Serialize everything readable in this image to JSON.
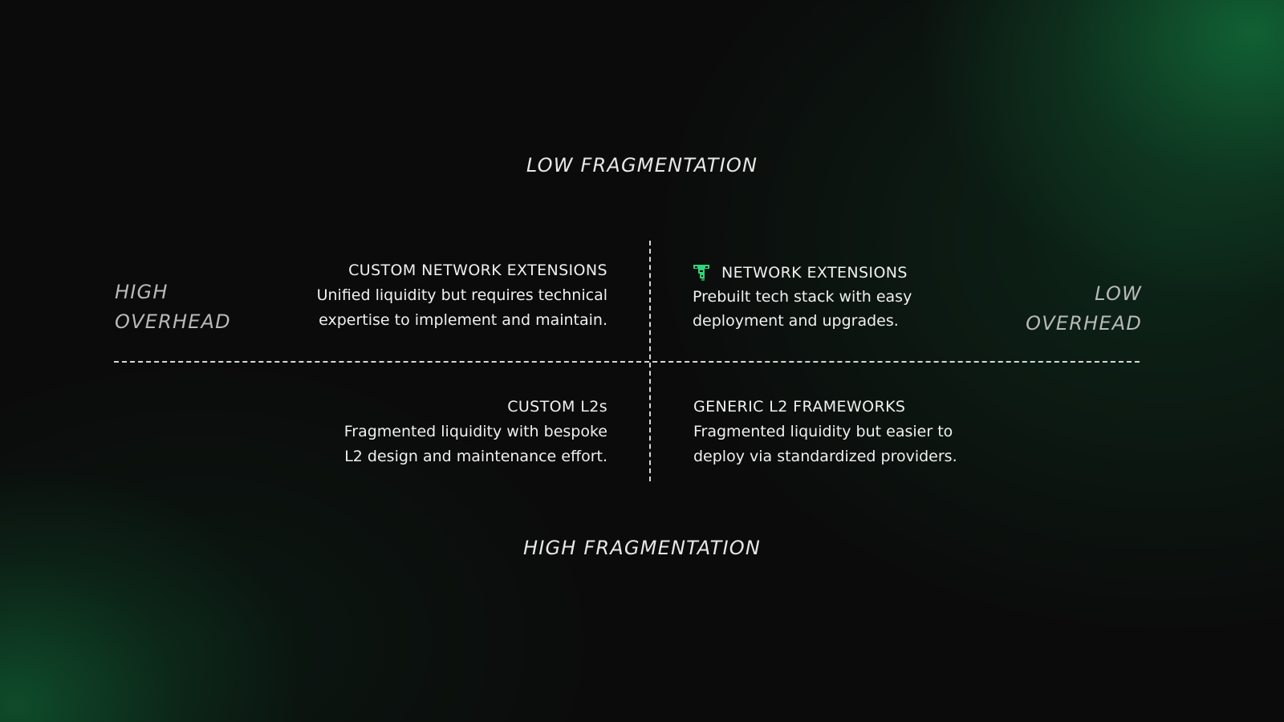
{
  "axes": {
    "top": "LOW FRAGMENTATION",
    "bottom": "HIGH FRAGMENTATION",
    "left_line1": "HIGH",
    "left_line2": "OVERHEAD",
    "right_line1": "LOW",
    "right_line2": "OVERHEAD"
  },
  "quadrants": {
    "top_left": {
      "title": "CUSTOM NETWORK EXTENSIONS",
      "desc_line1": "Unified liquidity but requires technical",
      "desc_line2": "expertise to implement and maintain."
    },
    "top_right": {
      "icon": "brand-logo-icon",
      "title": "NETWORK EXTENSIONS",
      "desc_line1": "Prebuilt tech stack with easy",
      "desc_line2": "deployment and upgrades."
    },
    "bottom_left": {
      "title": "CUSTOM L2s",
      "desc_line1": "Fragmented liquidity with bespoke",
      "desc_line2": "L2 design and maintenance effort."
    },
    "bottom_right": {
      "title": "GENERIC L2 FRAMEWORKS",
      "desc_line1": "Fragmented liquidity but easier to",
      "desc_line2": "deploy via standardized providers."
    }
  },
  "colors": {
    "background": "#0b0b0b",
    "accent_green": "#1f8a4c",
    "icon_green": "#2fd47a",
    "text": "#f0f0f0",
    "axis_side_text": "#b9b9b9"
  }
}
